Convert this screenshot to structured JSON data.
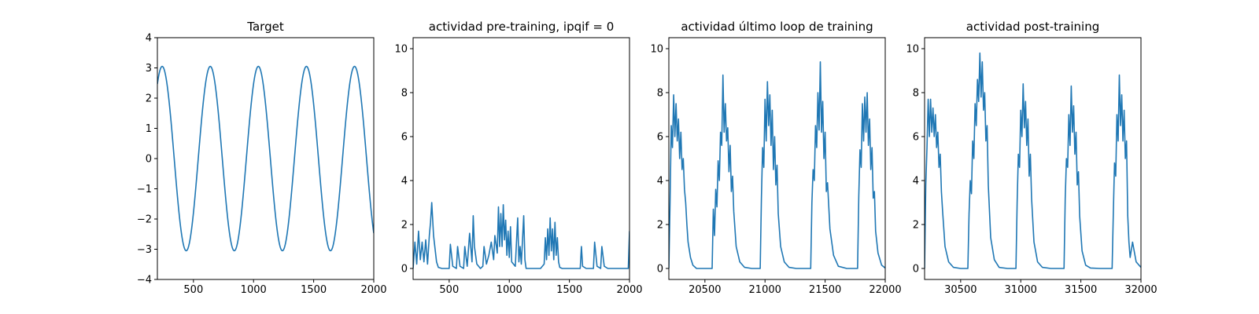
{
  "figure": {
    "background": "#ffffff",
    "line_color": "#1f77b4"
  },
  "chart_data": [
    {
      "type": "line",
      "title": "Target",
      "xlabel": "",
      "ylabel": "",
      "xlim": [
        200,
        2000
      ],
      "ylim": [
        -4,
        4
      ],
      "xticks": [
        500,
        1000,
        1500,
        2000
      ],
      "yticks": [
        -4,
        -3,
        -2,
        -1,
        0,
        1,
        2,
        3,
        4
      ],
      "series": [
        {
          "name": "target",
          "function": "sine",
          "amplitude": 3.05,
          "period": 400,
          "peak_x": [
            240,
            640,
            1040,
            1440,
            1840
          ],
          "trough_x": [
            440,
            840,
            1240,
            1640
          ],
          "x_start": 200,
          "x_end": 2000
        }
      ]
    },
    {
      "type": "line",
      "title": "actividad pre-training, ipqif = 0",
      "xlabel": "",
      "ylabel": "",
      "xlim": [
        200,
        2000
      ],
      "ylim": [
        -0.5,
        10.5
      ],
      "xticks": [
        500,
        1000,
        1500,
        2000
      ],
      "yticks": [
        0,
        2,
        4,
        6,
        8,
        10
      ],
      "series": [
        {
          "name": "actividad",
          "x": [
            200,
            215,
            230,
            245,
            260,
            275,
            290,
            305,
            320,
            335,
            345,
            355,
            370,
            395,
            410,
            440,
            470,
            500,
            510,
            530,
            560,
            570,
            590,
            620,
            630,
            650,
            670,
            690,
            700,
            710,
            730,
            760,
            780,
            790,
            810,
            830,
            850,
            870,
            880,
            900,
            910,
            920,
            930,
            940,
            950,
            960,
            970,
            980,
            990,
            1000,
            1010,
            1020,
            1050,
            1070,
            1080,
            1090,
            1100,
            1110,
            1120,
            1130,
            1140,
            1150,
            1170,
            1190,
            1210,
            1230,
            1260,
            1290,
            1300,
            1310,
            1320,
            1330,
            1340,
            1350,
            1360,
            1370,
            1380,
            1390,
            1400,
            1410,
            1420,
            1440,
            1460,
            1490,
            1520,
            1550,
            1590,
            1600,
            1610,
            1640,
            1700,
            1710,
            1730,
            1760,
            1770,
            1790,
            1820,
            1900,
            1960,
            1990,
            2000
          ],
          "y": [
            0,
            1.2,
            0.2,
            1.7,
            0.4,
            1.2,
            0.3,
            1.3,
            0.2,
            1.5,
            2.1,
            3.0,
            1.5,
            0.3,
            0.05,
            0,
            0,
            0,
            1.1,
            0.1,
            0,
            1.0,
            0.1,
            0,
            1.0,
            0.1,
            1.6,
            0.3,
            2.4,
            1.0,
            0.2,
            0,
            0.1,
            1.0,
            0.2,
            0.6,
            1.2,
            0.4,
            1.5,
            0.7,
            2.8,
            1.0,
            2.5,
            1.0,
            2.9,
            1.3,
            2.2,
            0.6,
            1.7,
            0.5,
            1.9,
            0.3,
            0.1,
            2.3,
            0.3,
            1.0,
            0.2,
            1.3,
            2.4,
            0.4,
            0,
            0,
            0,
            0,
            0,
            0,
            0,
            0.2,
            1.4,
            0.4,
            1.8,
            0.6,
            2.3,
            0.8,
            1.8,
            0.4,
            2.1,
            0.6,
            1.4,
            0.3,
            0.05,
            0,
            0,
            0,
            0,
            0,
            0,
            1.0,
            0.1,
            0,
            0,
            1.2,
            0.1,
            0,
            1.0,
            0.1,
            0,
            0,
            0,
            0,
            1.7
          ]
        }
      ]
    },
    {
      "type": "line",
      "title": "actividad último loop de training",
      "xlabel": "",
      "ylabel": "",
      "xlim": [
        20200,
        22000
      ],
      "ylim": [
        -0.5,
        10.5
      ],
      "xticks": [
        20500,
        21000,
        21500,
        22000
      ],
      "yticks": [
        0,
        2,
        4,
        6,
        8,
        10
      ],
      "series": [
        {
          "name": "actividad",
          "x": [
            20200,
            20210,
            20220,
            20230,
            20240,
            20250,
            20260,
            20270,
            20280,
            20290,
            20300,
            20310,
            20320,
            20330,
            20340,
            20350,
            20360,
            20380,
            20400,
            20430,
            20470,
            20520,
            20560,
            20570,
            20580,
            20590,
            20600,
            20610,
            20620,
            20630,
            20640,
            20650,
            20660,
            20670,
            20680,
            20690,
            20700,
            20710,
            20720,
            20730,
            20740,
            20760,
            20790,
            20830,
            20890,
            20960,
            20970,
            20980,
            20990,
            21000,
            21010,
            21020,
            21030,
            21040,
            21050,
            21060,
            21070,
            21080,
            21090,
            21100,
            21110,
            21130,
            21160,
            21200,
            21260,
            21380,
            21390,
            21400,
            21410,
            21420,
            21430,
            21440,
            21450,
            21460,
            21470,
            21480,
            21490,
            21500,
            21510,
            21520,
            21540,
            21570,
            21610,
            21680,
            21770,
            21780,
            21790,
            21800,
            21810,
            21820,
            21830,
            21840,
            21850,
            21860,
            21870,
            21880,
            21890,
            21900,
            21910,
            21920,
            21940,
            21970,
            22000
          ],
          "y": [
            0,
            3.0,
            6.5,
            5.5,
            7.9,
            6.0,
            7.5,
            5.8,
            6.8,
            5.0,
            6.2,
            4.5,
            5.0,
            3.6,
            3.0,
            2.0,
            1.2,
            0.5,
            0.15,
            0,
            0,
            0,
            0,
            2.7,
            1.5,
            3.6,
            2.8,
            4.9,
            4.0,
            6.2,
            5.6,
            8.8,
            6.2,
            7.5,
            5.8,
            6.4,
            4.4,
            5.6,
            3.5,
            4.2,
            2.6,
            1.0,
            0.3,
            0.05,
            0,
            0,
            3.2,
            5.5,
            4.6,
            7.7,
            5.8,
            8.5,
            6.5,
            7.9,
            5.6,
            7.2,
            4.5,
            6.0,
            3.8,
            4.7,
            2.5,
            1.0,
            0.3,
            0.05,
            0,
            0,
            3.0,
            4.5,
            4.0,
            6.5,
            5.5,
            8.0,
            6.3,
            9.4,
            6.2,
            7.6,
            5.0,
            6.2,
            3.5,
            3.9,
            1.8,
            0.6,
            0.1,
            0,
            0,
            3.3,
            5.4,
            4.6,
            7.5,
            5.8,
            7.8,
            6.2,
            8.0,
            5.6,
            6.8,
            4.5,
            5.5,
            3.2,
            3.5,
            1.7,
            0.7,
            0.15,
            0.02
          ]
        }
      ]
    },
    {
      "type": "line",
      "title": "actividad post-training",
      "xlabel": "",
      "ylabel": "",
      "xlim": [
        30200,
        32000
      ],
      "ylim": [
        -0.5,
        10.5
      ],
      "xticks": [
        30500,
        31000,
        31500,
        32000
      ],
      "yticks": [
        0,
        2,
        4,
        6,
        8,
        10
      ],
      "series": [
        {
          "name": "actividad",
          "x": [
            30200,
            30210,
            30220,
            30230,
            30240,
            30250,
            30260,
            30270,
            30280,
            30290,
            30300,
            30310,
            30320,
            30330,
            30340,
            30350,
            30370,
            30400,
            30440,
            30500,
            30560,
            30570,
            30580,
            30590,
            30600,
            30610,
            30620,
            30630,
            30640,
            30650,
            30660,
            30670,
            30680,
            30690,
            30700,
            30710,
            30720,
            30730,
            30750,
            30780,
            30820,
            30890,
            30960,
            30970,
            30980,
            30990,
            31000,
            31010,
            31020,
            31030,
            31040,
            31050,
            31060,
            31070,
            31080,
            31090,
            31110,
            31140,
            31180,
            31250,
            31360,
            31370,
            31380,
            31390,
            31400,
            31410,
            31420,
            31430,
            31440,
            31450,
            31460,
            31470,
            31480,
            31490,
            31510,
            31540,
            31580,
            31660,
            31760,
            31770,
            31780,
            31790,
            31800,
            31810,
            31820,
            31830,
            31840,
            31850,
            31860,
            31870,
            31880,
            31890,
            31900,
            31910,
            31930,
            31960,
            32000
          ],
          "y": [
            0,
            3.8,
            5.5,
            7.7,
            6.0,
            7.7,
            6.2,
            7.3,
            6.0,
            7.0,
            5.5,
            6.2,
            4.6,
            5.2,
            3.5,
            2.6,
            1.0,
            0.3,
            0.05,
            0,
            0,
            2.5,
            4.0,
            3.4,
            5.8,
            5.0,
            7.5,
            6.5,
            8.6,
            7.6,
            9.8,
            7.8,
            9.4,
            7.2,
            8.0,
            5.8,
            6.5,
            3.8,
            1.4,
            0.4,
            0.05,
            0,
            0,
            3.0,
            5.2,
            4.6,
            7.2,
            6.0,
            8.4,
            6.4,
            7.6,
            5.6,
            6.8,
            4.2,
            5.2,
            3.2,
            1.2,
            0.3,
            0.05,
            0,
            0,
            3.2,
            5.0,
            4.6,
            7.0,
            5.6,
            8.3,
            6.2,
            7.4,
            5.2,
            6.2,
            3.8,
            4.4,
            2.4,
            0.8,
            0.15,
            0.02,
            0,
            0,
            2.5,
            4.8,
            4.2,
            7.0,
            5.8,
            8.8,
            6.5,
            7.9,
            5.8,
            7.2,
            5.0,
            5.8,
            2.4,
            1.2,
            0.5,
            1.2,
            0.3,
            0.05
          ]
        }
      ]
    }
  ]
}
